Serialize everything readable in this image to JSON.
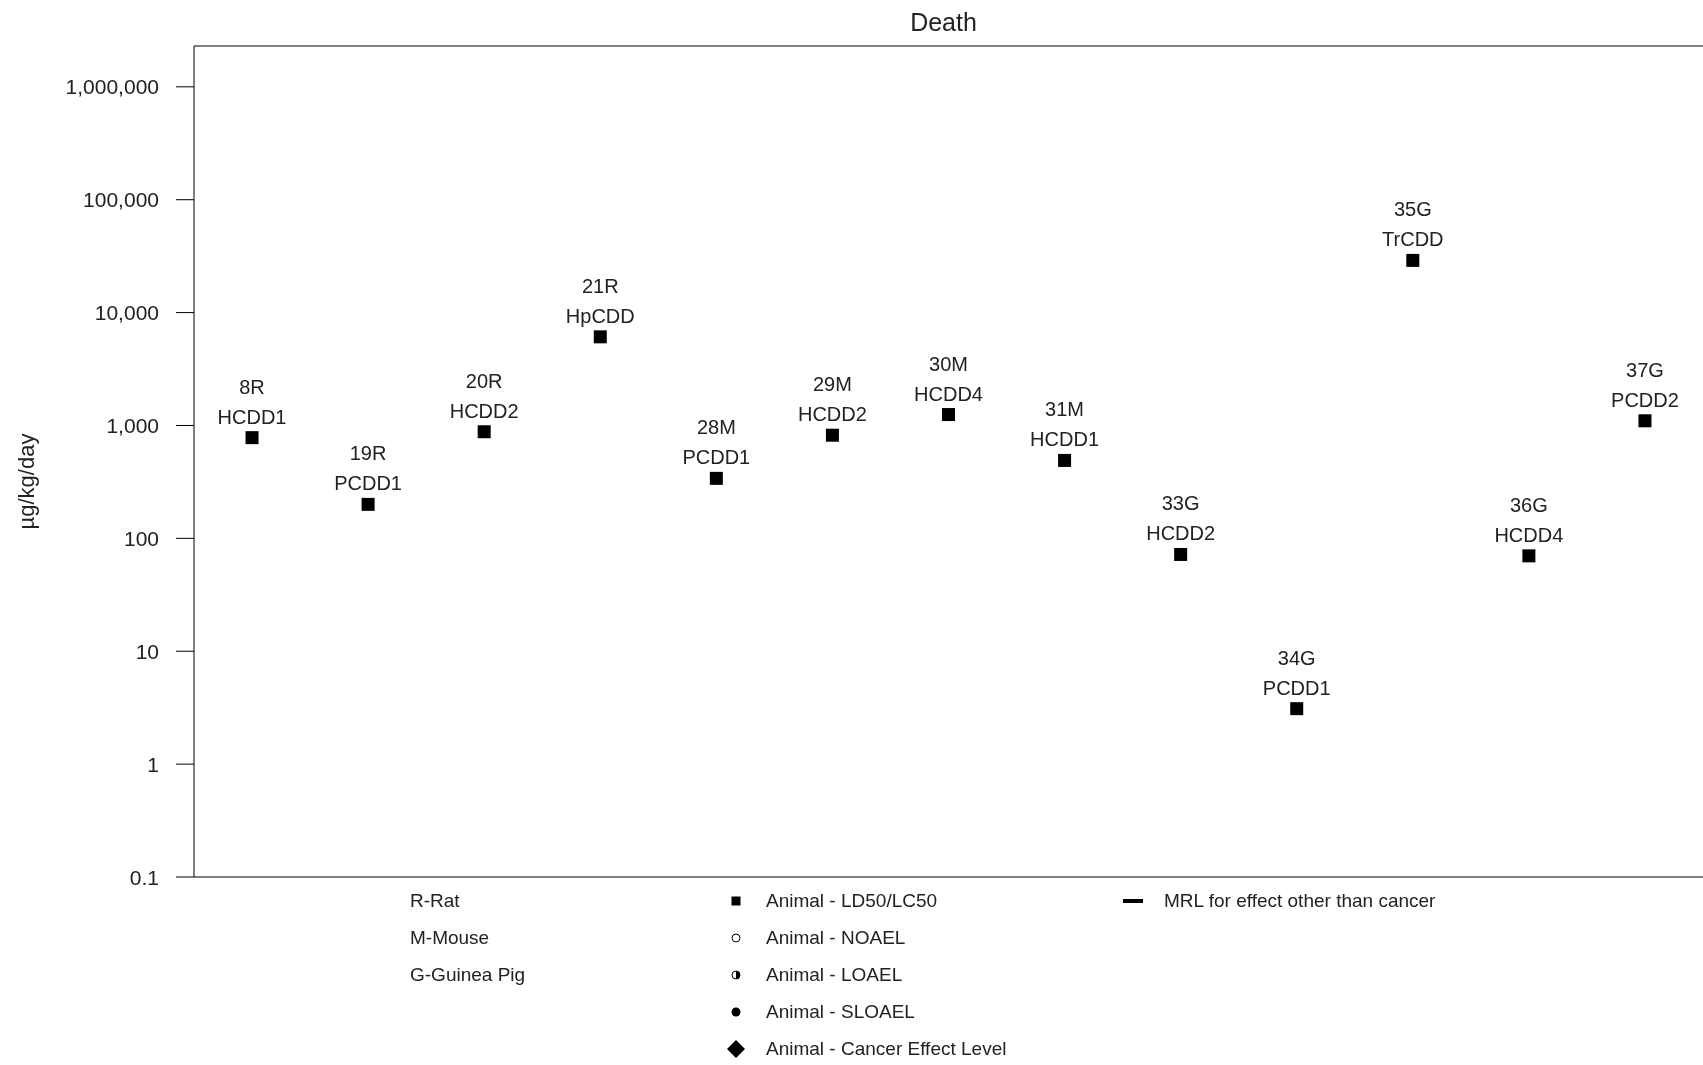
{
  "chart_data": {
    "type": "scatter",
    "title": "Death",
    "ylabel": "µg/kg/day",
    "categories": [
      null,
      null,
      null,
      null,
      null,
      null,
      null,
      null,
      null,
      null,
      null,
      null,
      null
    ],
    "series": [
      {
        "name": "Animal - LD50/LC50",
        "color": "#000000",
        "values": [
          780,
          200,
          880,
          6100,
          340,
          820,
          1250,
          490,
          72,
          3.1,
          29000,
          70,
          1100
        ]
      }
    ],
    "log": "y",
    "ylim": [
      0.1,
      2300000
    ],
    "yticks": [
      {
        "value": 0.1,
        "label": "0.1"
      },
      1,
      10,
      100,
      {
        "value": 1000,
        "label": "1,000"
      },
      {
        "value": 10000,
        "label": "10,000"
      },
      {
        "value": 100000,
        "label": "100,000"
      },
      {
        "value": 1000000,
        "label": "1,000,000"
      }
    ],
    "marker": "square",
    "grid": false,
    "legend": "bottom",
    "annotations": [
      {
        "text": "8R\nHCDD1",
        "y": 780
      },
      {
        "text": "19R\nPCDD1",
        "y": 200
      },
      {
        "text": "20R\nHCDD2",
        "y": 880
      },
      {
        "text": "21R\nHpCDD",
        "y": 6100
      },
      {
        "text": "28M\nPCDD1",
        "y": 340
      },
      {
        "text": "29M\nHCDD2",
        "y": 820
      },
      {
        "text": "30M\nHCDD4",
        "y": 1250
      },
      {
        "text": "31M\nHCDD1",
        "y": 490
      },
      {
        "text": "33G\nHCDD2",
        "y": 72
      },
      {
        "text": "34G\nPCDD1",
        "y": 3.1
      },
      {
        "text": "35G\nTrCDD",
        "y": 29000
      },
      {
        "text": "36G\nHCDD4",
        "y": 70
      },
      {
        "text": "37G\nPCDD2",
        "y": 1100
      },
      "R-Rat",
      "M-Mouse",
      "G-Guinea Pig",
      "Animal - NOAEL",
      "Animal - LOAEL",
      "Animal - SLOAEL",
      "Animal - Cancer Effect Level",
      "MRL for effect other than cancer"
    ]
  }
}
